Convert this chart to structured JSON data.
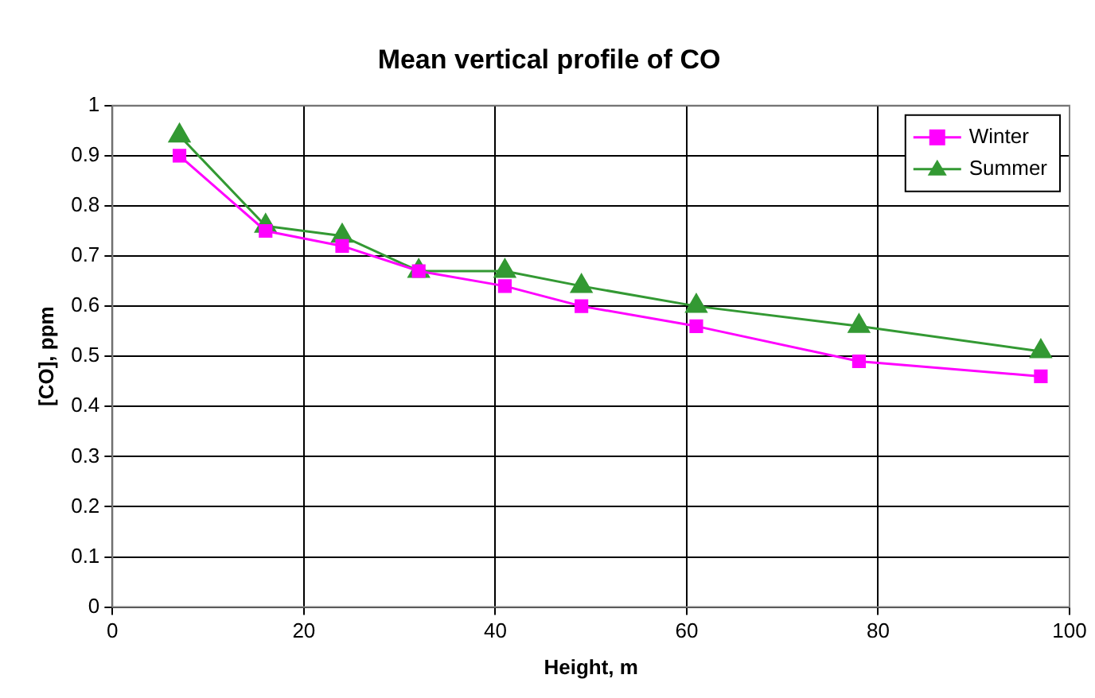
{
  "chart_data": {
    "type": "line",
    "title": "Mean vertical profile of CO",
    "xlabel": "Height, m",
    "ylabel": "[CO], ppm",
    "x": [
      7,
      16,
      24,
      32,
      41,
      49,
      61,
      78,
      97
    ],
    "series": [
      {
        "name": "Winter",
        "color": "#ff00ff",
        "marker": "square",
        "values": [
          0.9,
          0.75,
          0.72,
          0.67,
          0.64,
          0.6,
          0.56,
          0.49,
          0.46
        ]
      },
      {
        "name": "Summer",
        "color": "#339933",
        "marker": "triangle",
        "values": [
          0.94,
          0.76,
          0.74,
          0.67,
          0.67,
          0.64,
          0.6,
          0.56,
          0.51
        ]
      }
    ],
    "xlim": [
      0,
      100
    ],
    "xticks": [
      0,
      20,
      40,
      60,
      80,
      100
    ],
    "ylim": [
      0,
      1
    ],
    "yticks": [
      0,
      0.1,
      0.2,
      0.3,
      0.4,
      0.5,
      0.6,
      0.7,
      0.8,
      0.9,
      1
    ],
    "grid": true,
    "legend": "top right",
    "line_style": "solid"
  }
}
